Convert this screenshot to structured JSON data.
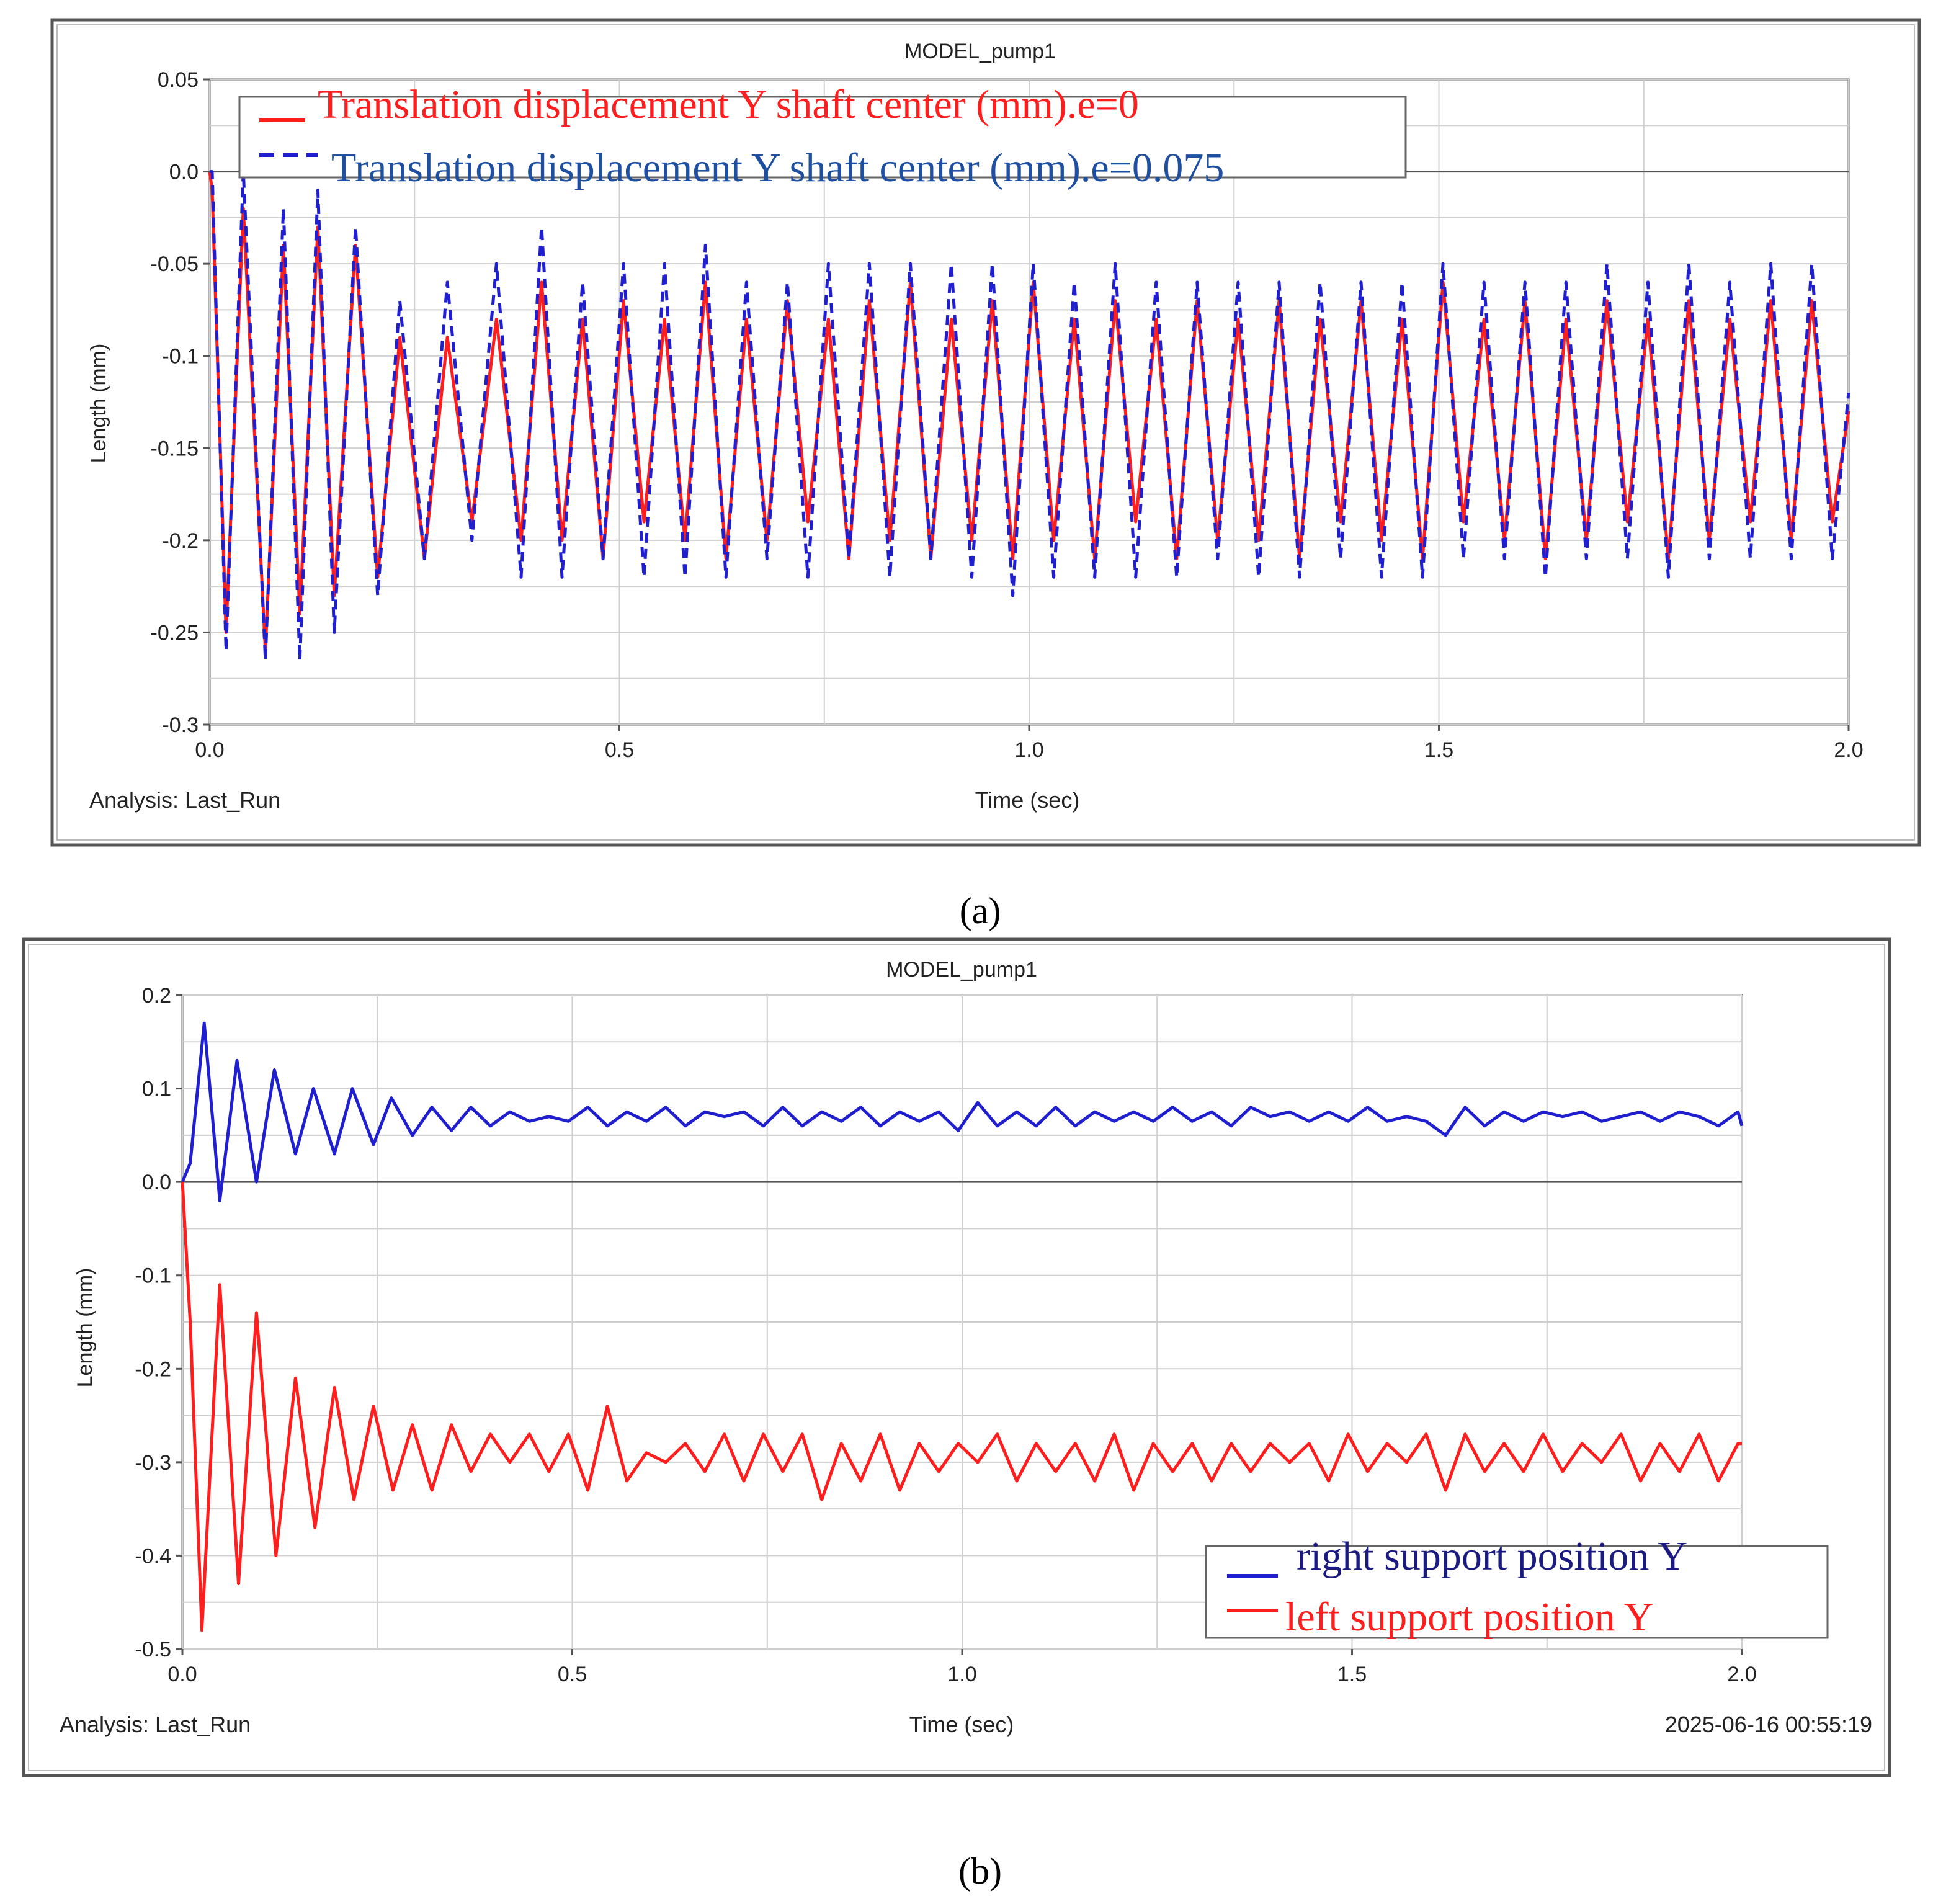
{
  "chart_data": [
    {
      "panel": "(a)",
      "type": "line",
      "title": "MODEL_pump1",
      "xlabel": "Time (sec)",
      "ylabel": "Length (mm)",
      "footer_left": "Analysis:  Last_Run",
      "xlim": [
        0,
        2.0
      ],
      "ylim": [
        -0.3,
        0.05
      ],
      "xticks": [
        "0.0",
        "0.5",
        "1.0",
        "1.5",
        "2.0"
      ],
      "yticks": [
        "0.05",
        "0.0",
        "-0.05",
        "-0.1",
        "-0.15",
        "-0.2",
        "-0.25",
        "-0.3"
      ],
      "grid": true,
      "legend_position": "top-left",
      "series": [
        {
          "name": "Translation displacement Y shaft center (mm).e=0",
          "color": "#ff1e1e",
          "style": "solid",
          "x": [
            0,
            0.003,
            0.02,
            0.041,
            0.068,
            0.09,
            0.11,
            0.132,
            0.152,
            0.178,
            0.205,
            0.232,
            0.262,
            0.29,
            0.32,
            0.35,
            0.38,
            0.405,
            0.43,
            0.455,
            0.48,
            0.505,
            0.53,
            0.555,
            0.58,
            0.605,
            0.63,
            0.655,
            0.68,
            0.705,
            0.73,
            0.755,
            0.78,
            0.805,
            0.83,
            0.855,
            0.88,
            0.905,
            0.93,
            0.955,
            0.98,
            1.005,
            1.03,
            1.055,
            1.08,
            1.105,
            1.13,
            1.155,
            1.18,
            1.205,
            1.23,
            1.255,
            1.28,
            1.305,
            1.33,
            1.355,
            1.38,
            1.405,
            1.43,
            1.455,
            1.48,
            1.505,
            1.53,
            1.555,
            1.58,
            1.605,
            1.63,
            1.655,
            1.68,
            1.705,
            1.73,
            1.755,
            1.78,
            1.805,
            1.83,
            1.855,
            1.88,
            1.905,
            1.93,
            1.955,
            1.98,
            2.0
          ],
          "y": [
            0,
            -0.01,
            -0.25,
            -0.02,
            -0.26,
            -0.04,
            -0.24,
            -0.03,
            -0.23,
            -0.04,
            -0.22,
            -0.09,
            -0.21,
            -0.09,
            -0.19,
            -0.08,
            -0.2,
            -0.06,
            -0.2,
            -0.08,
            -0.21,
            -0.07,
            -0.19,
            -0.08,
            -0.2,
            -0.06,
            -0.21,
            -0.08,
            -0.2,
            -0.07,
            -0.19,
            -0.08,
            -0.21,
            -0.07,
            -0.2,
            -0.06,
            -0.21,
            -0.08,
            -0.2,
            -0.07,
            -0.21,
            -0.06,
            -0.2,
            -0.08,
            -0.21,
            -0.07,
            -0.19,
            -0.08,
            -0.21,
            -0.07,
            -0.2,
            -0.08,
            -0.2,
            -0.07,
            -0.21,
            -0.08,
            -0.19,
            -0.07,
            -0.2,
            -0.08,
            -0.21,
            -0.06,
            -0.19,
            -0.08,
            -0.2,
            -0.07,
            -0.21,
            -0.08,
            -0.2,
            -0.07,
            -0.19,
            -0.08,
            -0.21,
            -0.07,
            -0.2,
            -0.08,
            -0.19,
            -0.07,
            -0.2,
            -0.07,
            -0.19,
            -0.13
          ]
        },
        {
          "name": "Translation displacement Y shaft center (mm).e=0.075",
          "color": "#1f1fd0",
          "style": "dashed",
          "x": [
            0,
            0.003,
            0.02,
            0.041,
            0.068,
            0.09,
            0.11,
            0.132,
            0.152,
            0.178,
            0.205,
            0.232,
            0.262,
            0.29,
            0.32,
            0.35,
            0.38,
            0.405,
            0.43,
            0.455,
            0.48,
            0.505,
            0.53,
            0.555,
            0.58,
            0.605,
            0.63,
            0.655,
            0.68,
            0.705,
            0.73,
            0.755,
            0.78,
            0.805,
            0.83,
            0.855,
            0.88,
            0.905,
            0.93,
            0.955,
            0.98,
            1.005,
            1.03,
            1.055,
            1.08,
            1.105,
            1.13,
            1.155,
            1.18,
            1.205,
            1.23,
            1.255,
            1.28,
            1.305,
            1.33,
            1.355,
            1.38,
            1.405,
            1.43,
            1.455,
            1.48,
            1.505,
            1.53,
            1.555,
            1.58,
            1.605,
            1.63,
            1.655,
            1.68,
            1.705,
            1.73,
            1.755,
            1.78,
            1.805,
            1.83,
            1.855,
            1.88,
            1.905,
            1.93,
            1.955,
            1.98,
            2.0
          ],
          "y": [
            0,
            0.0,
            -0.26,
            0.0,
            -0.265,
            -0.02,
            -0.265,
            -0.01,
            -0.25,
            -0.03,
            -0.23,
            -0.07,
            -0.21,
            -0.06,
            -0.2,
            -0.05,
            -0.22,
            -0.03,
            -0.22,
            -0.06,
            -0.21,
            -0.05,
            -0.22,
            -0.05,
            -0.22,
            -0.04,
            -0.22,
            -0.06,
            -0.21,
            -0.06,
            -0.22,
            -0.05,
            -0.21,
            -0.05,
            -0.22,
            -0.05,
            -0.21,
            -0.05,
            -0.22,
            -0.05,
            -0.23,
            -0.05,
            -0.22,
            -0.06,
            -0.22,
            -0.05,
            -0.22,
            -0.06,
            -0.22,
            -0.06,
            -0.21,
            -0.06,
            -0.22,
            -0.06,
            -0.22,
            -0.06,
            -0.21,
            -0.06,
            -0.22,
            -0.06,
            -0.22,
            -0.05,
            -0.21,
            -0.06,
            -0.21,
            -0.06,
            -0.22,
            -0.06,
            -0.21,
            -0.05,
            -0.21,
            -0.06,
            -0.22,
            -0.05,
            -0.21,
            -0.06,
            -0.21,
            -0.05,
            -0.21,
            -0.05,
            -0.21,
            -0.12
          ]
        }
      ]
    },
    {
      "panel": "(b)",
      "type": "line",
      "title": "MODEL_pump1",
      "xlabel": "Time (sec)",
      "ylabel": "Length (mm)",
      "footer_left": "Analysis:  Last_Run",
      "footer_right": "2025-06-16 00:55:19",
      "xlim": [
        0,
        2.0
      ],
      "ylim": [
        -0.5,
        0.2
      ],
      "xticks": [
        "0.0",
        "0.5",
        "1.0",
        "1.5",
        "2.0"
      ],
      "yticks": [
        "0.2",
        "0.1",
        "0.0",
        "-0.1",
        "-0.2",
        "-0.3",
        "-0.4",
        "-0.5"
      ],
      "grid": true,
      "legend_position": "bottom-right",
      "series": [
        {
          "name": "right support position Y",
          "color": "#1f1fd0",
          "style": "solid",
          "x": [
            0,
            0.01,
            0.028,
            0.048,
            0.07,
            0.095,
            0.118,
            0.145,
            0.168,
            0.195,
            0.218,
            0.245,
            0.268,
            0.295,
            0.32,
            0.345,
            0.37,
            0.395,
            0.42,
            0.445,
            0.47,
            0.495,
            0.52,
            0.545,
            0.57,
            0.595,
            0.62,
            0.645,
            0.67,
            0.695,
            0.72,
            0.745,
            0.77,
            0.795,
            0.82,
            0.845,
            0.87,
            0.895,
            0.92,
            0.945,
            0.97,
            0.995,
            1.02,
            1.045,
            1.07,
            1.095,
            1.12,
            1.145,
            1.17,
            1.195,
            1.22,
            1.245,
            1.27,
            1.295,
            1.32,
            1.345,
            1.37,
            1.395,
            1.42,
            1.445,
            1.47,
            1.495,
            1.52,
            1.545,
            1.57,
            1.595,
            1.62,
            1.645,
            1.67,
            1.695,
            1.72,
            1.745,
            1.77,
            1.795,
            1.82,
            1.845,
            1.87,
            1.895,
            1.92,
            1.945,
            1.97,
            1.995,
            2.0
          ],
          "y": [
            0.0,
            0.02,
            0.17,
            -0.02,
            0.13,
            0.0,
            0.12,
            0.03,
            0.1,
            0.03,
            0.1,
            0.04,
            0.09,
            0.05,
            0.08,
            0.055,
            0.08,
            0.06,
            0.075,
            0.065,
            0.07,
            0.065,
            0.08,
            0.06,
            0.075,
            0.065,
            0.08,
            0.06,
            0.075,
            0.07,
            0.075,
            0.06,
            0.08,
            0.06,
            0.075,
            0.065,
            0.08,
            0.06,
            0.075,
            0.065,
            0.075,
            0.055,
            0.085,
            0.06,
            0.075,
            0.06,
            0.08,
            0.06,
            0.075,
            0.065,
            0.075,
            0.065,
            0.08,
            0.065,
            0.075,
            0.06,
            0.08,
            0.07,
            0.075,
            0.065,
            0.075,
            0.065,
            0.08,
            0.065,
            0.07,
            0.065,
            0.05,
            0.08,
            0.06,
            0.075,
            0.065,
            0.075,
            0.07,
            0.075,
            0.065,
            0.07,
            0.075,
            0.065,
            0.075,
            0.07,
            0.06,
            0.075,
            0.06
          ]
        },
        {
          "name": "left support position Y",
          "color": "#ff1e1e",
          "style": "solid",
          "x": [
            0,
            0.01,
            0.025,
            0.048,
            0.072,
            0.095,
            0.12,
            0.145,
            0.17,
            0.195,
            0.22,
            0.245,
            0.27,
            0.295,
            0.32,
            0.345,
            0.37,
            0.395,
            0.42,
            0.445,
            0.47,
            0.495,
            0.52,
            0.545,
            0.57,
            0.595,
            0.62,
            0.645,
            0.67,
            0.695,
            0.72,
            0.745,
            0.77,
            0.795,
            0.82,
            0.845,
            0.87,
            0.895,
            0.92,
            0.945,
            0.97,
            0.995,
            1.02,
            1.045,
            1.07,
            1.095,
            1.12,
            1.145,
            1.17,
            1.195,
            1.22,
            1.245,
            1.27,
            1.295,
            1.32,
            1.345,
            1.37,
            1.395,
            1.42,
            1.445,
            1.47,
            1.495,
            1.52,
            1.545,
            1.57,
            1.595,
            1.62,
            1.645,
            1.67,
            1.695,
            1.72,
            1.745,
            1.77,
            1.795,
            1.82,
            1.845,
            1.87,
            1.895,
            1.92,
            1.945,
            1.97,
            1.995,
            2.0
          ],
          "y": [
            0.0,
            -0.15,
            -0.48,
            -0.11,
            -0.43,
            -0.14,
            -0.4,
            -0.21,
            -0.37,
            -0.22,
            -0.34,
            -0.24,
            -0.33,
            -0.26,
            -0.33,
            -0.26,
            -0.31,
            -0.27,
            -0.3,
            -0.27,
            -0.31,
            -0.27,
            -0.33,
            -0.24,
            -0.32,
            -0.29,
            -0.3,
            -0.28,
            -0.31,
            -0.27,
            -0.32,
            -0.27,
            -0.31,
            -0.27,
            -0.34,
            -0.28,
            -0.32,
            -0.27,
            -0.33,
            -0.28,
            -0.31,
            -0.28,
            -0.3,
            -0.27,
            -0.32,
            -0.28,
            -0.31,
            -0.28,
            -0.32,
            -0.27,
            -0.33,
            -0.28,
            -0.31,
            -0.28,
            -0.32,
            -0.28,
            -0.31,
            -0.28,
            -0.3,
            -0.28,
            -0.32,
            -0.27,
            -0.31,
            -0.28,
            -0.3,
            -0.27,
            -0.33,
            -0.27,
            -0.31,
            -0.28,
            -0.31,
            -0.27,
            -0.31,
            -0.28,
            -0.3,
            -0.27,
            -0.32,
            -0.28,
            -0.31,
            -0.27,
            -0.32,
            -0.28,
            -0.28
          ]
        }
      ]
    }
  ],
  "captions": [
    "(a)",
    "(b)"
  ],
  "colors": {
    "background": "#ffffff",
    "frame": "#555555",
    "plot_bg": "#ffffff",
    "grid": "#cfcfcf",
    "text": "#222222"
  }
}
